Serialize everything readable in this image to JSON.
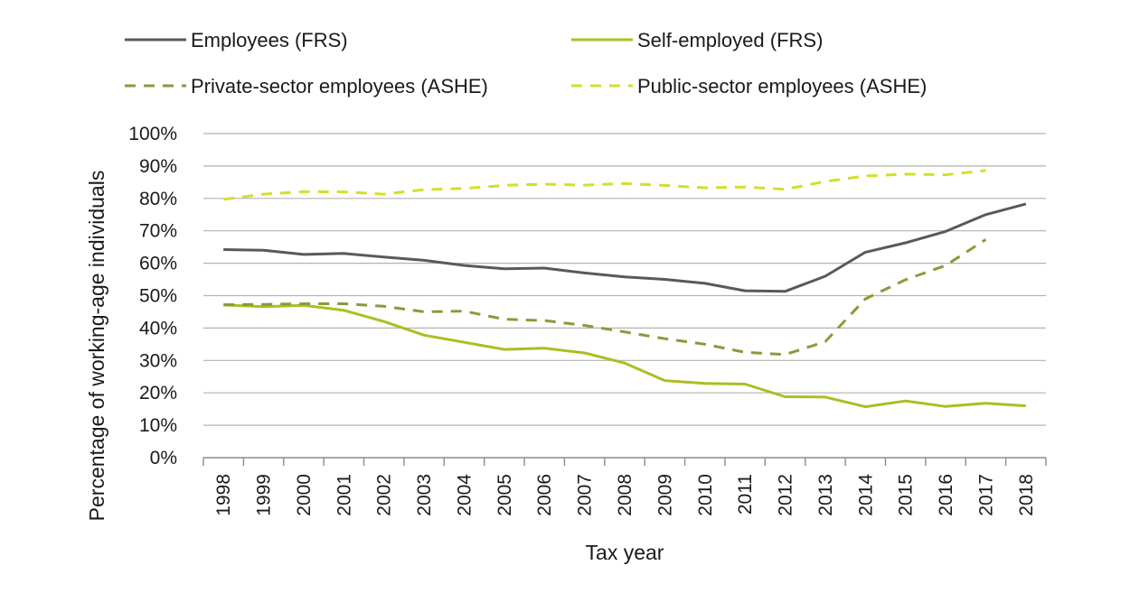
{
  "chart_data": {
    "type": "line",
    "title": "",
    "xlabel": "Tax year",
    "ylabel": "Percentage of working-age individuals",
    "x": [
      "1998",
      "1999",
      "2000",
      "2001",
      "2002",
      "2003",
      "2004",
      "2005",
      "2006",
      "2007",
      "2008",
      "2009",
      "2010",
      "2011",
      "2012",
      "2013",
      "2014",
      "2015",
      "2016",
      "2017",
      "2018"
    ],
    "yticks": [
      "0%",
      "10%",
      "20%",
      "30%",
      "40%",
      "50%",
      "60%",
      "70%",
      "80%",
      "90%",
      "100%"
    ],
    "ylim": [
      0,
      100
    ],
    "y_unit": "percent",
    "grid": "horizontal",
    "legend_placement": "top",
    "series": [
      {
        "name": "Employees (FRS)",
        "color": "#58595b",
        "style": "solid",
        "values": [
          64.2,
          64.0,
          62.7,
          63.0,
          61.9,
          60.9,
          59.3,
          58.3,
          58.5,
          57.0,
          55.8,
          55.0,
          53.8,
          51.5,
          51.3,
          56.0,
          63.4,
          66.3,
          69.8,
          75.0,
          78.3
        ]
      },
      {
        "name": "Self-employed (FRS)",
        "color": "#aebd22",
        "style": "solid",
        "values": [
          47.1,
          46.6,
          47.0,
          45.5,
          42.0,
          37.8,
          35.6,
          33.4,
          33.8,
          32.3,
          29.2,
          23.8,
          22.9,
          22.7,
          18.8,
          18.7,
          15.7,
          17.5,
          15.8,
          16.8,
          16.0
        ]
      },
      {
        "name": "Private-sector employees (ASHE)",
        "color": "#8a9a3b",
        "style": "dashed",
        "values": [
          47.2,
          47.3,
          47.5,
          47.5,
          46.7,
          45.0,
          45.2,
          42.7,
          42.3,
          40.8,
          38.8,
          36.7,
          35.0,
          32.5,
          31.8,
          35.8,
          49.0,
          54.9,
          59.3,
          67.3,
          null
        ]
      },
      {
        "name": "Public-sector employees (ASHE)",
        "color": "#d5de2a",
        "style": "dashed",
        "values": [
          79.7,
          81.3,
          82.1,
          82.0,
          81.3,
          82.7,
          83.1,
          84.0,
          84.4,
          84.1,
          84.6,
          84.0,
          83.3,
          83.5,
          82.8,
          85.2,
          86.9,
          87.5,
          87.3,
          88.6,
          null
        ]
      }
    ]
  }
}
